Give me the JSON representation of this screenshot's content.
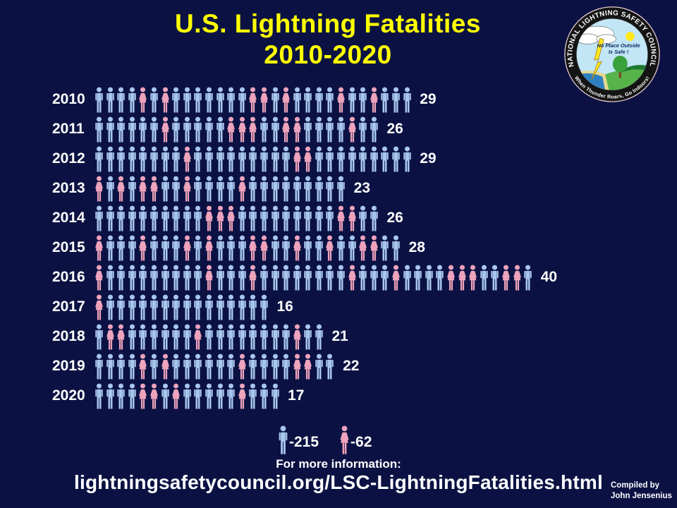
{
  "title": {
    "line1": "U.S. Lightning Fatalities",
    "line2": "2010-2020"
  },
  "chart_data": {
    "type": "pictogram-bar",
    "title": "U.S. Lightning Fatalities 2010-2020",
    "categories": [
      "2010",
      "2011",
      "2012",
      "2013",
      "2014",
      "2015",
      "2016",
      "2017",
      "2018",
      "2019",
      "2020"
    ],
    "series": [
      {
        "name": "Male",
        "color": "#a8c6ee",
        "values": [
          22,
          19,
          26,
          17,
          21,
          18,
          30,
          15,
          17,
          17,
          13
        ]
      },
      {
        "name": "Female",
        "color": "#eea3bc",
        "values": [
          7,
          7,
          3,
          6,
          5,
          10,
          10,
          1,
          4,
          5,
          4
        ]
      }
    ],
    "totals": [
      29,
      26,
      29,
      23,
      26,
      28,
      40,
      16,
      21,
      22,
      17
    ],
    "grand_totals": {
      "male": 215,
      "female": 62
    },
    "legend_position": "bottom",
    "grid": false
  },
  "rows": [
    {
      "year": "2010",
      "count": "29",
      "sequence": "MMMMFMFMMMMMMMFFMFMMMMFMMFMMM"
    },
    {
      "year": "2011",
      "count": "26",
      "sequence": "MMMMMMFMMMMMFFFMMFFMMMMFMM"
    },
    {
      "year": "2012",
      "count": "29",
      "sequence": "MMMMMMMMFMMMMMMMMMFFMMMMMMMMM"
    },
    {
      "year": "2013",
      "count": "23",
      "sequence": "FMFMFFMMFMMMMFMMMMMMMMM"
    },
    {
      "year": "2014",
      "count": "26",
      "sequence": "MMMMMMMMMMFFFMMMMMMMMMFFMM"
    },
    {
      "year": "2015",
      "count": "28",
      "sequence": "FMMMFMMMFMFMMMFFMMFMMFMMFFMM"
    },
    {
      "year": "2016",
      "count": "40",
      "sequence": "FMMMMMMMMMFMMMFMMMMMMMMFMMMFMMMMFFFMMFFM"
    },
    {
      "year": "2017",
      "count": "16",
      "sequence": "FMMMMMMMMMMMMMMM"
    },
    {
      "year": "2018",
      "count": "21",
      "sequence": "MFFMMMMMMFMMMMMMMMFMM"
    },
    {
      "year": "2019",
      "count": "22",
      "sequence": "MMMMFMFMMMMMMFMMMMFFMM"
    },
    {
      "year": "2020",
      "count": "17",
      "sequence": "MMMMFFMFMMMMMFMMM"
    }
  ],
  "legend": {
    "male_total": "-215",
    "female_total": "-62"
  },
  "footer": {
    "info_label": "For more information:",
    "url": "lightningsafetycouncil.org/LSC-LightningFatalities.html",
    "credit_line1": "Compiled by",
    "credit_line2": "John Jensenius"
  },
  "logo": {
    "ring_text_top": "NATIONAL LIGHTNING SAFETY COUNCIL",
    "ring_text_bottom": "When Thunder Roars, Go Indoors!",
    "center_text_line1": "No Place Outside",
    "center_text_line2": "Is Safe !"
  },
  "colors": {
    "background": "#0b1243",
    "title": "#ffff00",
    "text": "#ffffff",
    "male": "#a8c6ee",
    "female": "#eea3bc"
  }
}
